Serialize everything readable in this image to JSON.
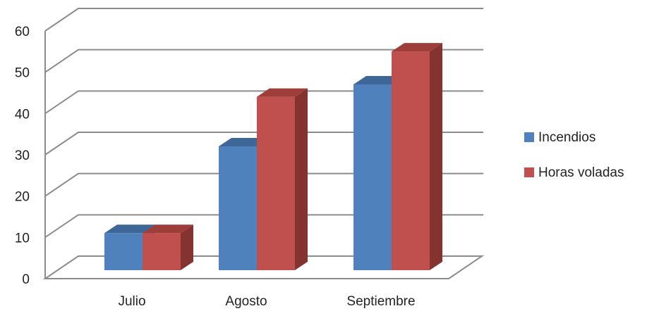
{
  "chart_data": {
    "type": "bar",
    "categories": [
      "Julio",
      "Agosto",
      "Septiembre"
    ],
    "series": [
      {
        "name": "Incendios",
        "values": [
          9,
          30,
          45
        ],
        "color": "#4F81BD",
        "top_color": "#3E6797",
        "side_color": "#385D8A"
      },
      {
        "name": "Horas voladas",
        "values": [
          9,
          42,
          53
        ],
        "color": "#C0504D",
        "top_color": "#9E3E3B",
        "side_color": "#843331"
      }
    ],
    "title": "",
    "xlabel": "",
    "ylabel": "",
    "ylim": [
      0,
      60
    ],
    "yticks": [
      0,
      10,
      20,
      30,
      40,
      50,
      60
    ],
    "grid": true,
    "legend": "right",
    "three_d": true
  }
}
